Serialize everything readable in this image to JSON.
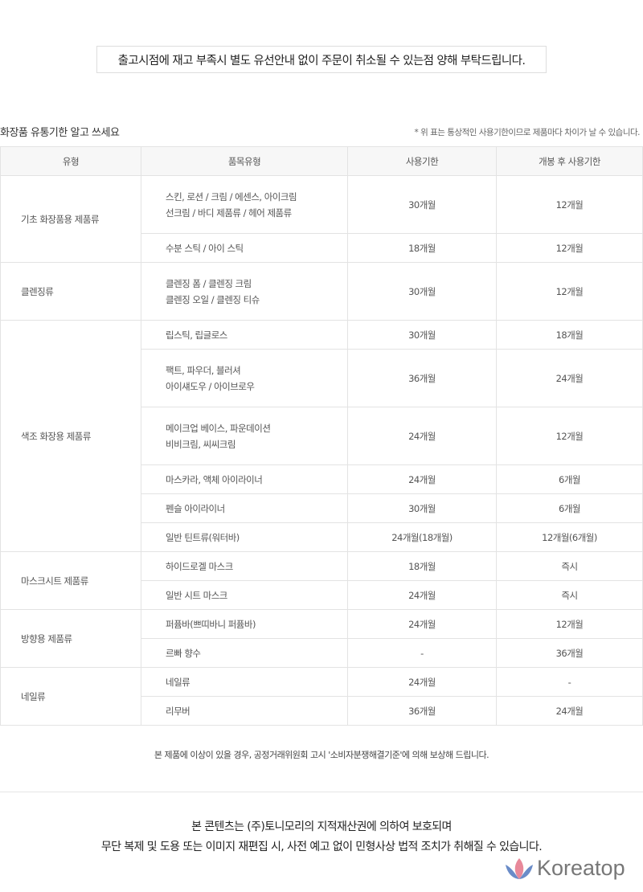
{
  "notice": "출고시점에 재고 부족시 별도 유선안내 없이 주문이 취소될 수 있는점 양해 부탁드립니다.",
  "section_title": "화장품 유통기한 알고 쓰세요",
  "section_note": "* 위 표는 통상적인 사용기한이므로 제품마다 차이가 날 수 있습니다.",
  "table": {
    "headers": [
      "유형",
      "품목유형",
      "사용기한",
      "개봉 후 사용기한"
    ],
    "groups": [
      {
        "type": "기초 화장품용 제품류",
        "rows": [
          {
            "item": [
              "스킨, 로션 / 크림 / 에센스, 아이크림",
              "선크림 / 바디 제품류 / 헤어 제품류"
            ],
            "shelf": "30개월",
            "opened": "12개월"
          },
          {
            "item": [
              "수분 스틱 / 아이 스틱"
            ],
            "shelf": "18개월",
            "opened": "12개월"
          }
        ]
      },
      {
        "type": "클렌징류",
        "rows": [
          {
            "item": [
              "클렌징 폼 / 클렌징 크림",
              "클렌징 오일 / 클렌징 티슈"
            ],
            "shelf": "30개월",
            "opened": "12개월"
          }
        ]
      },
      {
        "type": "색조 화장용 제품류",
        "rows": [
          {
            "item": [
              "립스틱, 립글로스"
            ],
            "shelf": "30개월",
            "opened": "18개월"
          },
          {
            "item": [
              "팩트, 파우더, 블러셔",
              "아이섀도우 / 아이브로우"
            ],
            "shelf": "36개월",
            "opened": "24개월"
          },
          {
            "item": [
              "메이크업 베이스, 파운데이션",
              "비비크림, 씨씨크림"
            ],
            "shelf": "24개월",
            "opened": "12개월"
          },
          {
            "item": [
              "마스카라, 액체 아이라이너"
            ],
            "shelf": "24개월",
            "opened": "6개월"
          },
          {
            "item": [
              "펜슬 아이라이너"
            ],
            "shelf": "30개월",
            "opened": "6개월"
          },
          {
            "item": [
              "일반 틴트류(워터바)"
            ],
            "shelf": "24개월(18개월)",
            "opened": "12개월(6개월)"
          }
        ]
      },
      {
        "type": "마스크시트 제품류",
        "rows": [
          {
            "item": [
              "하이드로겔 마스크"
            ],
            "shelf": "18개월",
            "opened": "즉시"
          },
          {
            "item": [
              "일반 시트 마스크"
            ],
            "shelf": "24개월",
            "opened": "즉시"
          }
        ]
      },
      {
        "type": "방향용 제품류",
        "rows": [
          {
            "item": [
              "퍼퓸바(쁘띠바니 퍼퓸바)"
            ],
            "shelf": "24개월",
            "opened": "12개월"
          },
          {
            "item": [
              "르빠 향수"
            ],
            "shelf": "-",
            "opened": "36개월"
          }
        ]
      },
      {
        "type": "네일류",
        "rows": [
          {
            "item": [
              "네일류"
            ],
            "shelf": "24개월",
            "opened": "-"
          },
          {
            "item": [
              "리무버"
            ],
            "shelf": "36개월",
            "opened": "24개월"
          }
        ]
      }
    ]
  },
  "compensation": "본 제품에 이상이 있을 경우, 공정거래위원회 고시 '소비자분쟁해결기준'에 의해 보상해 드립니다.",
  "copyright": [
    "본 콘텐츠는 (주)토니모리의 지적재산권에 의하여 보호되며",
    "무단 복제 및 도용 또는 이미지 재편집 시, 사전 예고 없이 민형사상 법적 조치가 취해질 수 있습니다."
  ],
  "logo": {
    "text": "Koreatop",
    "colors": {
      "petal_center": "#e8899a",
      "petal_side": "#6a8cc8"
    }
  }
}
